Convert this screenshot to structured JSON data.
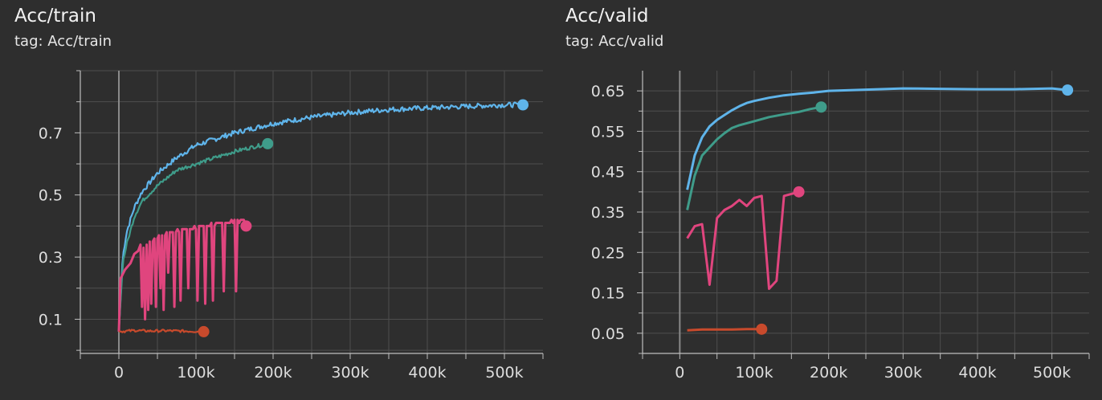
{
  "charts": [
    {
      "title": "Acc/train",
      "tag_label": "tag: Acc/train"
    },
    {
      "title": "Acc/valid",
      "tag_label": "tag: Acc/valid"
    }
  ],
  "colors": {
    "background": "#2e2e2e",
    "grid": "#4e4e4e",
    "zero_line": "#8a8a8a",
    "axis": "#bfbfbf",
    "run_blue": "#5fb4ea",
    "run_teal": "#3f9c8a",
    "run_pink": "#e0457e",
    "run_orange": "#c84a2c"
  },
  "chart_data": [
    {
      "type": "line",
      "title": "Acc/train",
      "xlabel": "",
      "ylabel": "",
      "xlim": [
        -50000,
        550000
      ],
      "ylim": [
        -0.01,
        0.9
      ],
      "x_ticks": [
        0,
        100000,
        200000,
        300000,
        400000,
        500000
      ],
      "x_tick_labels": [
        "0",
        "100k",
        "200k",
        "300k",
        "400k",
        "500k"
      ],
      "y_ticks": [
        0.1,
        0.3,
        0.5,
        0.7
      ],
      "y_tick_labels": [
        "0.1",
        "0.3",
        "0.5",
        "0.7"
      ],
      "grid": true,
      "series": [
        {
          "color": "#5fb4ea",
          "noise": 0.008,
          "x": [
            0,
            5000,
            10000,
            20000,
            30000,
            50000,
            75000,
            100000,
            150000,
            200000,
            250000,
            300000,
            350000,
            400000,
            450000,
            500000,
            524000
          ],
          "y": [
            0.06,
            0.3,
            0.38,
            0.46,
            0.51,
            0.57,
            0.62,
            0.66,
            0.7,
            0.73,
            0.75,
            0.765,
            0.775,
            0.78,
            0.785,
            0.79,
            0.79
          ]
        },
        {
          "color": "#3f9c8a",
          "noise": 0.006,
          "x": [
            0,
            5000,
            10000,
            20000,
            30000,
            50000,
            75000,
            100000,
            125000,
            150000,
            175000,
            193000
          ],
          "y": [
            0.06,
            0.28,
            0.34,
            0.43,
            0.48,
            0.53,
            0.58,
            0.6,
            0.62,
            0.64,
            0.655,
            0.665
          ]
        },
        {
          "color": "#e0457e",
          "x": [
            0,
            2000,
            8000,
            15000,
            20000,
            25000,
            28000,
            30000,
            32000,
            34000,
            36000,
            38000,
            40000,
            42000,
            44000,
            46000,
            48000,
            50000,
            52000,
            54000,
            56000,
            58000,
            60000,
            62000,
            64000,
            66000,
            68000,
            70000,
            72000,
            74000,
            76000,
            78000,
            80000,
            82000,
            84000,
            86000,
            88000,
            90000,
            92000,
            94000,
            96000,
            98000,
            100000,
            102000,
            104000,
            106000,
            108000,
            110000,
            112000,
            114000,
            116000,
            118000,
            120000,
            122000,
            124000,
            126000,
            128000,
            130000,
            132000,
            134000,
            136000,
            138000,
            140000,
            142000,
            144000,
            146000,
            148000,
            150000,
            152000,
            154000,
            156000,
            158000,
            160000,
            162000,
            165000
          ],
          "y": [
            0.06,
            0.23,
            0.26,
            0.28,
            0.31,
            0.32,
            0.34,
            0.14,
            0.33,
            0.1,
            0.34,
            0.13,
            0.35,
            0.15,
            0.35,
            0.36,
            0.14,
            0.36,
            0.37,
            0.2,
            0.37,
            0.13,
            0.37,
            0.38,
            0.25,
            0.38,
            0.38,
            0.38,
            0.14,
            0.38,
            0.39,
            0.38,
            0.16,
            0.39,
            0.39,
            0.39,
            0.39,
            0.2,
            0.39,
            0.39,
            0.39,
            0.4,
            0.39,
            0.16,
            0.4,
            0.4,
            0.4,
            0.4,
            0.15,
            0.4,
            0.4,
            0.4,
            0.41,
            0.16,
            0.4,
            0.41,
            0.41,
            0.41,
            0.41,
            0.41,
            0.19,
            0.41,
            0.41,
            0.41,
            0.41,
            0.42,
            0.41,
            0.42,
            0.19,
            0.42,
            0.41,
            0.42,
            0.42,
            0.42,
            0.4
          ]
        },
        {
          "color": "#c84a2c",
          "noise": 0.004,
          "x": [
            0,
            20000,
            40000,
            60000,
            80000,
            100000,
            110000
          ],
          "y": [
            0.06,
            0.064,
            0.062,
            0.063,
            0.062,
            0.061,
            0.06
          ]
        }
      ]
    },
    {
      "type": "line",
      "title": "Acc/valid",
      "xlabel": "",
      "ylabel": "",
      "xlim": [
        -50000,
        550000
      ],
      "ylim": [
        0,
        0.7
      ],
      "x_ticks": [
        0,
        100000,
        200000,
        300000,
        400000,
        500000
      ],
      "x_tick_labels": [
        "0",
        "100k",
        "200k",
        "300k",
        "400k",
        "500k"
      ],
      "y_ticks": [
        0.05,
        0.15,
        0.25,
        0.35,
        0.45,
        0.55,
        0.65
      ],
      "y_tick_labels": [
        "0.05",
        "0.15",
        "0.25",
        "0.35",
        "0.45",
        "0.55",
        "0.65"
      ],
      "grid": true,
      "series": [
        {
          "color": "#5fb4ea",
          "x": [
            10000,
            20000,
            30000,
            40000,
            50000,
            60000,
            70000,
            80000,
            90000,
            100000,
            120000,
            140000,
            160000,
            180000,
            200000,
            250000,
            300000,
            350000,
            400000,
            450000,
            500000,
            521000
          ],
          "y": [
            0.405,
            0.49,
            0.535,
            0.562,
            0.578,
            0.59,
            0.602,
            0.612,
            0.62,
            0.625,
            0.633,
            0.639,
            0.643,
            0.646,
            0.65,
            0.653,
            0.656,
            0.655,
            0.654,
            0.654,
            0.656,
            0.652
          ]
        },
        {
          "color": "#3f9c8a",
          "x": [
            10000,
            20000,
            30000,
            40000,
            50000,
            60000,
            70000,
            80000,
            100000,
            120000,
            140000,
            160000,
            175000,
            190000
          ],
          "y": [
            0.355,
            0.44,
            0.49,
            0.51,
            0.53,
            0.545,
            0.558,
            0.565,
            0.575,
            0.585,
            0.592,
            0.598,
            0.605,
            0.61
          ]
        },
        {
          "color": "#e0457e",
          "x": [
            10000,
            20000,
            30000,
            40000,
            50000,
            60000,
            70000,
            80000,
            90000,
            100000,
            110000,
            120000,
            130000,
            140000,
            150000,
            160000
          ],
          "y": [
            0.285,
            0.315,
            0.32,
            0.17,
            0.335,
            0.355,
            0.365,
            0.38,
            0.365,
            0.385,
            0.39,
            0.16,
            0.18,
            0.39,
            0.395,
            0.4
          ]
        },
        {
          "color": "#c84a2c",
          "x": [
            10000,
            30000,
            50000,
            70000,
            90000,
            110000
          ],
          "y": [
            0.057,
            0.059,
            0.059,
            0.059,
            0.06,
            0.06
          ]
        }
      ]
    }
  ]
}
